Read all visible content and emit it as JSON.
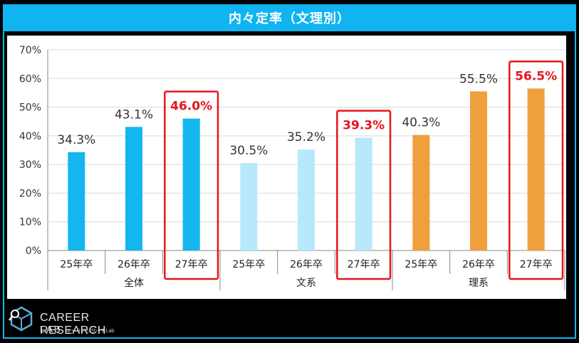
{
  "title": "内々定率（文理別）",
  "logo": {
    "line1": "CAREER RESEARCH",
    "line2": "LAB",
    "sub": "キャリアリサーチLab"
  },
  "colors": {
    "title_bg": "#10b4f0",
    "zentai": "#13b6ee",
    "bunkei": "#b7e8fb",
    "rikei": "#ef9f3c",
    "highlight": "#e8141c",
    "label": "#333333"
  },
  "chart_data": {
    "type": "bar",
    "ylim": [
      0,
      70
    ],
    "yticks": [
      "0%",
      "10%",
      "20%",
      "30%",
      "40%",
      "50%",
      "60%",
      "70%"
    ],
    "groups": [
      "全体",
      "文系",
      "理系"
    ],
    "categories": [
      "25年卒",
      "26年卒",
      "27年卒",
      "25年卒",
      "26年卒",
      "27年卒",
      "25年卒",
      "26年卒",
      "27年卒"
    ],
    "values": [
      34.3,
      43.1,
      46.0,
      30.5,
      35.2,
      39.3,
      40.3,
      55.5,
      56.5
    ],
    "labels": [
      "34.3%",
      "43.1%",
      "46.0%",
      "30.5%",
      "35.2%",
      "39.3%",
      "40.3%",
      "55.5%",
      "56.5%"
    ],
    "highlighted": [
      false,
      false,
      true,
      false,
      false,
      true,
      false,
      false,
      true
    ],
    "grid": true
  }
}
